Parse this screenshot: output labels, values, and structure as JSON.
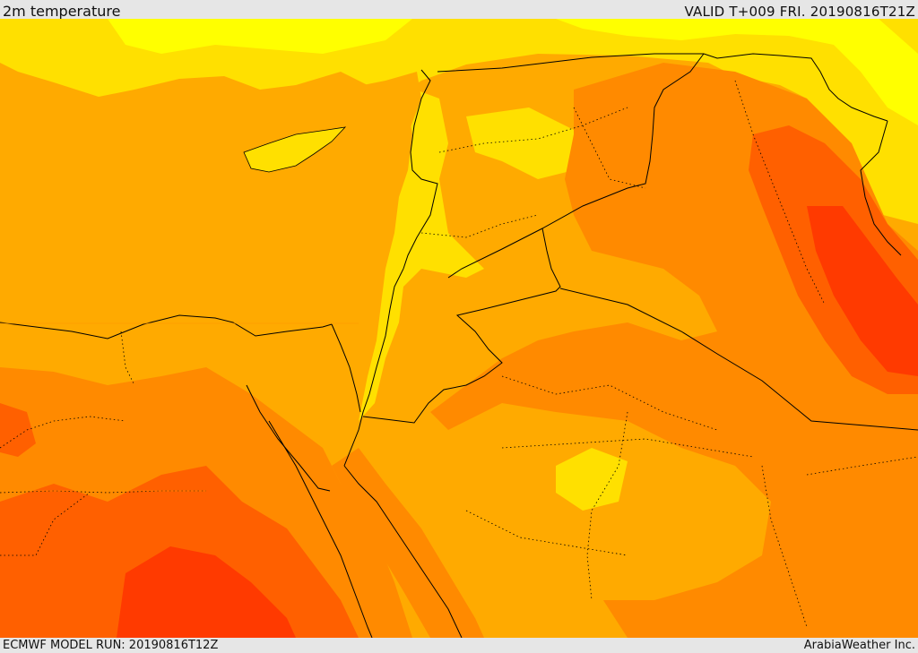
{
  "header": {
    "title": "2m temperature",
    "valid": "VALID T+009 FRI. 20190816T21Z"
  },
  "footer": {
    "model_run": "ECMWF MODEL RUN: 20190816T12Z",
    "credit": "ArabiaWeather Inc."
  },
  "colors": {
    "bar_background": "#e6e6e6",
    "temp_yellow_light": "#ffff00",
    "temp_yellow": "#ffe000",
    "temp_amber": "#ffaa00",
    "temp_orange": "#ff8a00",
    "temp_orange_red": "#ff6000",
    "temp_red": "#ff3a00",
    "borders": "#000000"
  },
  "map": {
    "variable": "2m temperature",
    "region": "Eastern Mediterranean / Levant / Northern Arabia"
  }
}
